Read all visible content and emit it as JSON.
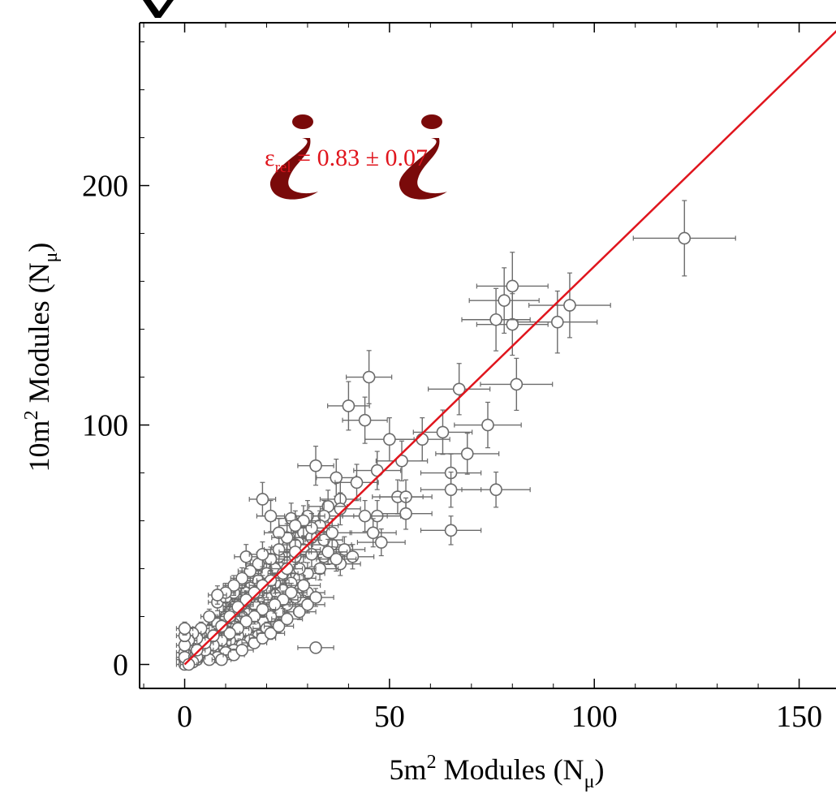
{
  "chart_data": {
    "type": "scatter",
    "xlabel": {
      "main": "5m",
      "sup": "2",
      "rest": " Modules (N",
      "sub": "μ",
      "close": ")"
    },
    "ylabel": {
      "main": "10m",
      "sup": "2",
      "rest": " Modules (N",
      "sub": "μ",
      "close": ")"
    },
    "xlim": [
      -11,
      159
    ],
    "ylim": [
      -10,
      268
    ],
    "x_ticks": [
      0,
      50,
      100,
      150
    ],
    "y_ticks": [
      0,
      100,
      200
    ],
    "grid": false,
    "annotation": {
      "prefix": "ε",
      "sub": "rel",
      "text": " = 0.83 ± 0.07"
    },
    "fit_line": {
      "x": [
        0,
        160
      ],
      "y": [
        0,
        266
      ],
      "color": "#e0151d"
    },
    "marker_color": "#6b6b6b",
    "x_error_frac": 0.09,
    "y_error_frac": 0.08,
    "points": [
      [
        122,
        178
      ],
      [
        94,
        150
      ],
      [
        91,
        143
      ],
      [
        80,
        158
      ],
      [
        80,
        142
      ],
      [
        78,
        152
      ],
      [
        76,
        144
      ],
      [
        81,
        117
      ],
      [
        67,
        115
      ],
      [
        45,
        120
      ],
      [
        40,
        108
      ],
      [
        44,
        102
      ],
      [
        63,
        97
      ],
      [
        58,
        94
      ],
      [
        50,
        94
      ],
      [
        74,
        100
      ],
      [
        69,
        88
      ],
      [
        65,
        80
      ],
      [
        65,
        73
      ],
      [
        76,
        73
      ],
      [
        65,
        56
      ],
      [
        53,
        85
      ],
      [
        47,
        81
      ],
      [
        32,
        83
      ],
      [
        37,
        78
      ],
      [
        42,
        76
      ],
      [
        38,
        69
      ],
      [
        52,
        70
      ],
      [
        54,
        70
      ],
      [
        54,
        63
      ],
      [
        47,
        62
      ],
      [
        44,
        62
      ],
      [
        46,
        55
      ],
      [
        48,
        51
      ],
      [
        38,
        65
      ],
      [
        35,
        66
      ],
      [
        34,
        62
      ],
      [
        30,
        62
      ],
      [
        26,
        61
      ],
      [
        21,
        62
      ],
      [
        19,
        69
      ],
      [
        29,
        55
      ],
      [
        31,
        53
      ],
      [
        36,
        50
      ],
      [
        39,
        48
      ],
      [
        41,
        45
      ],
      [
        38,
        42
      ],
      [
        34,
        45
      ],
      [
        33,
        40
      ],
      [
        30,
        38
      ],
      [
        28,
        36
      ],
      [
        26,
        34
      ],
      [
        24,
        31
      ],
      [
        22,
        29
      ],
      [
        20,
        28
      ],
      [
        18,
        27
      ],
      [
        17,
        25
      ],
      [
        15,
        22
      ],
      [
        14,
        20
      ],
      [
        13,
        18
      ],
      [
        12,
        17
      ],
      [
        11,
        15
      ],
      [
        10,
        14
      ],
      [
        9,
        12
      ],
      [
        8,
        11
      ],
      [
        7,
        10
      ],
      [
        6,
        9
      ],
      [
        5,
        8
      ],
      [
        4,
        7
      ],
      [
        3,
        5
      ],
      [
        2,
        4
      ],
      [
        1,
        2
      ],
      [
        25,
        49
      ],
      [
        23,
        45
      ],
      [
        22,
        40
      ],
      [
        20,
        38
      ],
      [
        18,
        35
      ],
      [
        16,
        32
      ],
      [
        15,
        30
      ],
      [
        13,
        27
      ],
      [
        12,
        24
      ],
      [
        11,
        22
      ],
      [
        10,
        20
      ],
      [
        9,
        18
      ],
      [
        8,
        16
      ],
      [
        7,
        14
      ],
      [
        6,
        12
      ],
      [
        5,
        10
      ],
      [
        4,
        9
      ],
      [
        3,
        7
      ],
      [
        2,
        6
      ],
      [
        1,
        4
      ],
      [
        0,
        2
      ],
      [
        0,
        0
      ],
      [
        28,
        40
      ],
      [
        27,
        45
      ],
      [
        29,
        48
      ],
      [
        31,
        46
      ],
      [
        27,
        50
      ],
      [
        25,
        53
      ],
      [
        23,
        55
      ],
      [
        30,
        30
      ],
      [
        29,
        33
      ],
      [
        27,
        28
      ],
      [
        25,
        25
      ],
      [
        23,
        22
      ],
      [
        21,
        20
      ],
      [
        19,
        18
      ],
      [
        17,
        16
      ],
      [
        15,
        14
      ],
      [
        13,
        12
      ],
      [
        11,
        10
      ],
      [
        9,
        8
      ],
      [
        7,
        6
      ],
      [
        5,
        4
      ],
      [
        3,
        2
      ],
      [
        20,
        15
      ],
      [
        18,
        12
      ],
      [
        16,
        10
      ],
      [
        14,
        8
      ],
      [
        12,
        6
      ],
      [
        10,
        5
      ],
      [
        8,
        3
      ],
      [
        6,
        2
      ],
      [
        24,
        38
      ],
      [
        22,
        34
      ],
      [
        20,
        32
      ],
      [
        18,
        30
      ],
      [
        16,
        28
      ],
      [
        14,
        25
      ],
      [
        12,
        22
      ],
      [
        10,
        19
      ],
      [
        8,
        17
      ],
      [
        6,
        14
      ],
      [
        4,
        12
      ],
      [
        2,
        9
      ],
      [
        1,
        7
      ],
      [
        0,
        5
      ],
      [
        0,
        3
      ],
      [
        32,
        7
      ],
      [
        26,
        30
      ],
      [
        24,
        27
      ],
      [
        22,
        25
      ],
      [
        19,
        23
      ],
      [
        17,
        20
      ],
      [
        15,
        18
      ],
      [
        13,
        15
      ],
      [
        11,
        13
      ],
      [
        9,
        10
      ],
      [
        7,
        8
      ],
      [
        5,
        6
      ],
      [
        3,
        3
      ],
      [
        2,
        1
      ],
      [
        1,
        0
      ],
      [
        34,
        52
      ],
      [
        36,
        55
      ],
      [
        33,
        58
      ],
      [
        31,
        57
      ],
      [
        29,
        60
      ],
      [
        27,
        58
      ],
      [
        35,
        47
      ],
      [
        37,
        44
      ],
      [
        25,
        40
      ],
      [
        21,
        35
      ],
      [
        19,
        33
      ],
      [
        17,
        30
      ],
      [
        15,
        27
      ],
      [
        13,
        24
      ],
      [
        11,
        20
      ],
      [
        9,
        16
      ],
      [
        7,
        12
      ],
      [
        5,
        9
      ],
      [
        3,
        6
      ],
      [
        6,
        20
      ],
      [
        4,
        15
      ],
      [
        3,
        11
      ],
      [
        2,
        13
      ],
      [
        1,
        10
      ],
      [
        0,
        8
      ],
      [
        0,
        12
      ],
      [
        0,
        15
      ],
      [
        8,
        26
      ],
      [
        10,
        28
      ],
      [
        12,
        30
      ],
      [
        9,
        2
      ],
      [
        12,
        4
      ],
      [
        14,
        6
      ],
      [
        17,
        9
      ],
      [
        19,
        11
      ],
      [
        21,
        13
      ],
      [
        23,
        16
      ],
      [
        25,
        19
      ],
      [
        28,
        22
      ],
      [
        30,
        25
      ],
      [
        32,
        28
      ],
      [
        21,
        44
      ],
      [
        18,
        42
      ],
      [
        16,
        39
      ],
      [
        14,
        36
      ],
      [
        12,
        33
      ],
      [
        10,
        30
      ],
      [
        8,
        29
      ],
      [
        15,
        45
      ],
      [
        19,
        46
      ],
      [
        23,
        48
      ],
      [
        27,
        47
      ]
    ]
  }
}
